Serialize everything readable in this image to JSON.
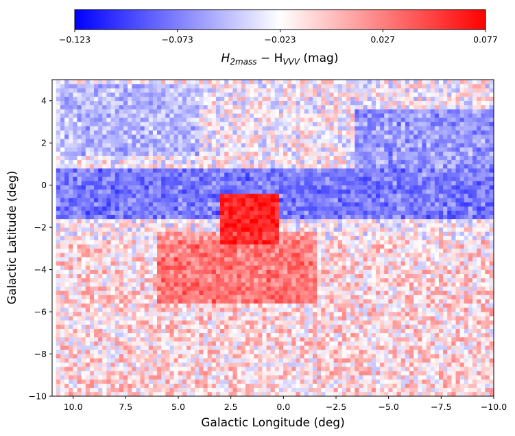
{
  "chart_data": {
    "type": "heatmap",
    "title": "",
    "xlabel": "Galactic Longitude (deg)",
    "ylabel": "Galactic Latitude (deg)",
    "xlim": [
      11,
      -10
    ],
    "ylim": [
      -10,
      5
    ],
    "x_ticks": [
      10.0,
      7.5,
      5.0,
      2.5,
      0.0,
      -2.5,
      -5.0,
      -7.5,
      -10.0
    ],
    "x_tick_labels": [
      "10.0",
      "7.5",
      "5.0",
      "2.5",
      "0.0",
      "−2.5",
      "−5.0",
      "−7.5",
      "−10.0"
    ],
    "y_ticks": [
      -10,
      -8,
      -6,
      -4,
      -2,
      0,
      2,
      4
    ],
    "y_tick_labels": [
      "−10",
      "−8",
      "−6",
      "−4",
      "−2",
      "0",
      "2",
      "4"
    ],
    "grid": false,
    "colorbar": {
      "location": "top",
      "cmap": [
        "#0000ff",
        "#ffffff",
        "#ff0000"
      ],
      "vmin": -0.123,
      "vmax": 0.077,
      "ticks": [
        -0.123,
        -0.073,
        -0.023,
        0.027,
        0.077
      ],
      "tick_labels": [
        "−0.123",
        "−0.073",
        "−0.023",
        "0.027",
        "0.077"
      ],
      "label_main": "H",
      "label_sub1": "2mass",
      "label_mid": " − H",
      "label_sub2": "VVV",
      "label_unit": " (mag)"
    },
    "features": [
      {
        "name": "Galactic plane blue band",
        "x_range": [
          10.8,
          -10
        ],
        "y_range": [
          -1.6,
          0.8
        ],
        "value": -0.11
      },
      {
        "name": "Blue region upper right",
        "x_range": [
          -3.5,
          -10
        ],
        "y_range": [
          0.8,
          3.5
        ],
        "value": -0.09
      },
      {
        "name": "Red block near centre",
        "x_range": [
          3.0,
          0.2
        ],
        "y_range": [
          -2.7,
          -0.4
        ],
        "value": 0.077
      },
      {
        "name": "Red diffuse region",
        "x_range": [
          6.0,
          -1.5
        ],
        "y_range": [
          -5.5,
          -2.2
        ],
        "value": 0.045
      },
      {
        "name": "Blue upper left band",
        "x_range": [
          10.5,
          4.0
        ],
        "y_range": [
          1.5,
          4.8
        ],
        "value": -0.07
      }
    ]
  }
}
